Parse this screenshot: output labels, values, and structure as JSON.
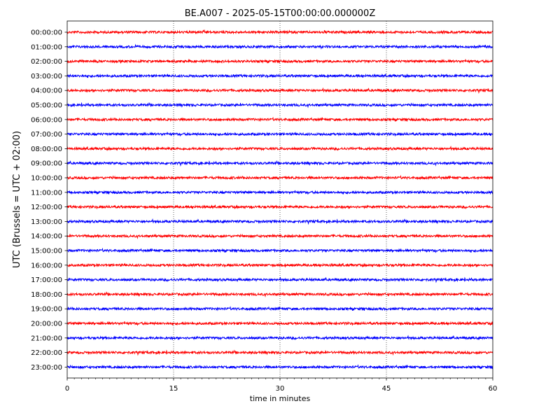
{
  "chart_data": {
    "type": "line",
    "title": "BE.A007 - 2025-05-15T00:00:00.000000Z",
    "xlabel": "time in minutes",
    "ylabel": "UTC (Brussels = UTC + 02:00)",
    "xlim": [
      0,
      60
    ],
    "xticks": [
      0,
      15,
      30,
      45,
      60
    ],
    "x_gridlines": [
      15,
      30,
      45
    ],
    "grid": "vertical dotted",
    "ytick_labels": [
      "00:00:00",
      "01:00:00",
      "02:00:00",
      "03:00:00",
      "04:00:00",
      "05:00:00",
      "06:00:00",
      "07:00:00",
      "08:00:00",
      "09:00:00",
      "10:00:00",
      "11:00:00",
      "12:00:00",
      "13:00:00",
      "14:00:00",
      "15:00:00",
      "16:00:00",
      "17:00:00",
      "18:00:00",
      "19:00:00",
      "20:00:00",
      "21:00:00",
      "22:00:00",
      "23:00:00"
    ],
    "trace_colors": [
      "#ff0000",
      "#0000ff"
    ],
    "trace_x_range": [
      0,
      60
    ]
  }
}
